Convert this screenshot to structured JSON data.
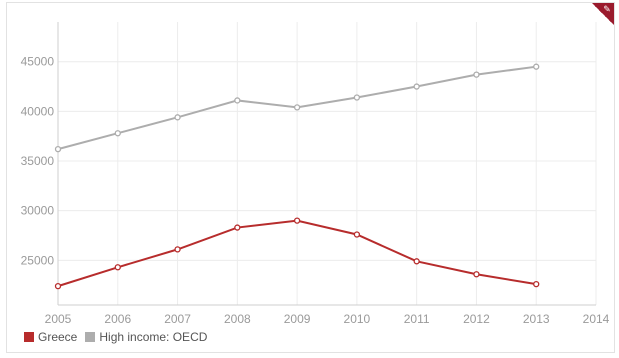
{
  "colors": {
    "greece": "#b72c2c",
    "oecd": "#adadad",
    "grid": "#ececec",
    "axis": "#cfcfcf"
  },
  "icons": {
    "corner": "share-icon"
  },
  "chart_data": {
    "type": "line",
    "x": [
      2005,
      2006,
      2007,
      2008,
      2009,
      2010,
      2011,
      2012,
      2013
    ],
    "series": [
      {
        "name": "Greece",
        "values": [
          22400,
          24300,
          26100,
          28300,
          29000,
          27600,
          24900,
          23600,
          22600
        ]
      },
      {
        "name": "High income: OECD",
        "values": [
          36200,
          37800,
          39400,
          41100,
          40400,
          41400,
          42500,
          43700,
          44500
        ]
      }
    ],
    "xlim": [
      2005,
      2014
    ],
    "ylim": [
      20500,
      49000
    ],
    "x_ticks": [
      "2005",
      "2006",
      "2007",
      "2008",
      "2009",
      "2010",
      "2011",
      "2012",
      "2013",
      "2014"
    ],
    "y_ticks": [
      "25000",
      "30000",
      "35000",
      "40000",
      "45000"
    ],
    "grid": true,
    "legend_placement": "bottom-left",
    "title": "",
    "xlabel": "",
    "ylabel": ""
  }
}
